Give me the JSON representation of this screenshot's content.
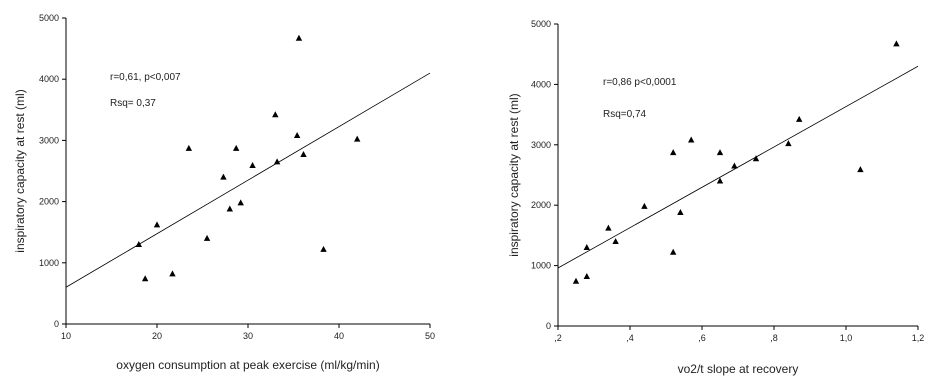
{
  "chart_data": [
    {
      "type": "scatter",
      "title": "",
      "xlabel": "oxygen consumption at peak exercise (ml/kg/min)",
      "ylabel": "inspiratory capacity at rest (ml)",
      "xlim": [
        10,
        50
      ],
      "ylim": [
        0,
        5000
      ],
      "xticks": [
        "10",
        "20",
        "30",
        "40",
        "50"
      ],
      "yticks": [
        "0",
        "1000",
        "2000",
        "3000",
        "4000",
        "5000"
      ],
      "annotations": [
        "r=0,61, p<0,007",
        "Rsq= 0,37"
      ],
      "points": [
        {
          "x": 18.0,
          "y": 1300
        },
        {
          "x": 18.7,
          "y": 740
        },
        {
          "x": 20.0,
          "y": 1620
        },
        {
          "x": 21.7,
          "y": 820
        },
        {
          "x": 23.5,
          "y": 2870
        },
        {
          "x": 25.5,
          "y": 1400
        },
        {
          "x": 27.3,
          "y": 2400
        },
        {
          "x": 28.0,
          "y": 1880
        },
        {
          "x": 28.7,
          "y": 2870
        },
        {
          "x": 29.2,
          "y": 1980
        },
        {
          "x": 30.5,
          "y": 2590
        },
        {
          "x": 33.0,
          "y": 3420
        },
        {
          "x": 33.2,
          "y": 2650
        },
        {
          "x": 35.4,
          "y": 3080
        },
        {
          "x": 35.6,
          "y": 4670
        },
        {
          "x": 36.1,
          "y": 2770
        },
        {
          "x": 38.3,
          "y": 1220
        },
        {
          "x": 42.0,
          "y": 3020
        }
      ],
      "fit_line": {
        "x": [
          10,
          50
        ],
        "y": [
          600,
          4100
        ]
      }
    },
    {
      "type": "scatter",
      "title": "",
      "xlabel": "vo2/t slope at recovery",
      "ylabel": "inspiratory capacity at rest (ml)",
      "xlim": [
        0.2,
        1.2
      ],
      "ylim": [
        0,
        5000
      ],
      "xticks": [
        ",2",
        ",4",
        ",6",
        ",8",
        "1,0",
        "1,2"
      ],
      "yticks": [
        "0",
        "1000",
        "2000",
        "3000",
        "4000",
        "5000"
      ],
      "annotations": [
        "r=0,86  p<0,0001",
        "Rsq=0,74"
      ],
      "points": [
        {
          "x": 0.25,
          "y": 740
        },
        {
          "x": 0.28,
          "y": 820
        },
        {
          "x": 0.28,
          "y": 1300
        },
        {
          "x": 0.34,
          "y": 1620
        },
        {
          "x": 0.36,
          "y": 1400
        },
        {
          "x": 0.44,
          "y": 1980
        },
        {
          "x": 0.52,
          "y": 2870
        },
        {
          "x": 0.52,
          "y": 1220
        },
        {
          "x": 0.54,
          "y": 1880
        },
        {
          "x": 0.57,
          "y": 3080
        },
        {
          "x": 0.65,
          "y": 2870
        },
        {
          "x": 0.65,
          "y": 2400
        },
        {
          "x": 0.69,
          "y": 2650
        },
        {
          "x": 0.75,
          "y": 2770
        },
        {
          "x": 0.84,
          "y": 3020
        },
        {
          "x": 0.87,
          "y": 3420
        },
        {
          "x": 1.04,
          "y": 2590
        },
        {
          "x": 1.14,
          "y": 4670
        }
      ],
      "fit_line": {
        "x": [
          0.2,
          1.2
        ],
        "y": [
          960,
          4300
        ]
      }
    }
  ]
}
